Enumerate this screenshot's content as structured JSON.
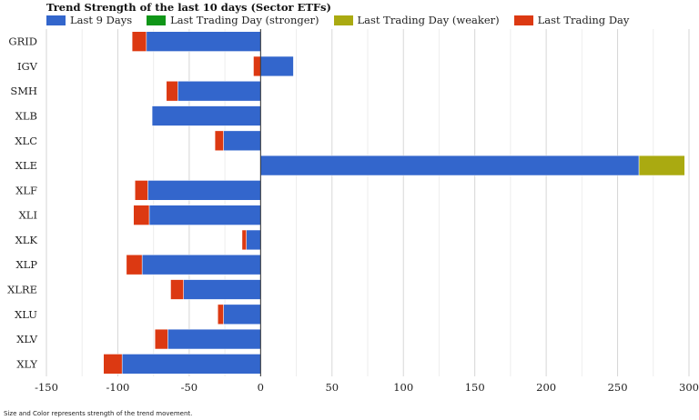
{
  "chart_data": {
    "type": "bar",
    "orientation": "horizontal",
    "stacked": true,
    "title": "Trend Strength of the last 10 days (Sector ETFs)",
    "footnote": "Size and Color represents strength of the trend movement.",
    "categories": [
      "GRID",
      "IGV",
      "SMH",
      "XLB",
      "XLC",
      "XLE",
      "XLF",
      "XLI",
      "XLK",
      "XLP",
      "XLRE",
      "XLU",
      "XLV",
      "XLY"
    ],
    "series": [
      {
        "name": "Last 9 Days",
        "color": "#3366cc",
        "values": [
          -80,
          23,
          -58,
          -76,
          -26,
          265,
          -79,
          -78,
          -10,
          -83,
          -54,
          -26,
          -65,
          -97
        ]
      },
      {
        "name": "Last Trading Day (stronger)",
        "color": "#109618",
        "values": [
          0,
          0,
          0,
          0,
          0,
          0,
          0,
          0,
          0,
          0,
          0,
          0,
          0,
          0
        ]
      },
      {
        "name": "Last Trading Day (weaker)",
        "color": "#aaaa11",
        "values": [
          0,
          0,
          0,
          0,
          0,
          32,
          0,
          0,
          0,
          0,
          0,
          0,
          0,
          0
        ]
      },
      {
        "name": "Last Trading Day",
        "color": "#dc3912",
        "values": [
          -10,
          -5,
          -8,
          0,
          -6,
          0,
          -9,
          -11,
          -3,
          -11,
          -9,
          -4,
          -9,
          -13
        ]
      }
    ],
    "xlim": [
      -150,
      300
    ],
    "xticks": [
      "-150",
      "-100",
      "-50",
      "0",
      "50",
      "100",
      "150",
      "200",
      "250",
      "300"
    ],
    "grid": true,
    "legend_position": "top"
  }
}
